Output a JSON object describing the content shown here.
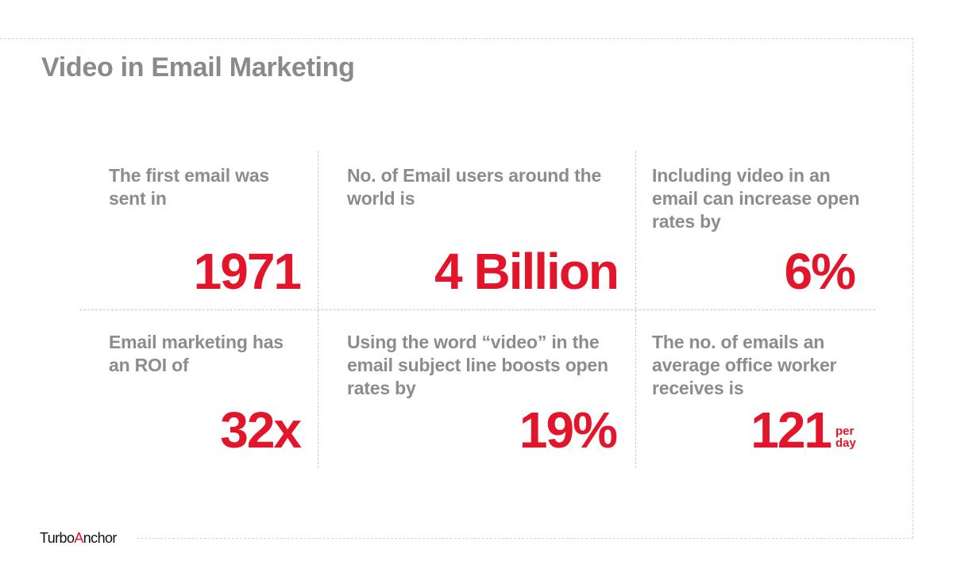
{
  "title": "Video in Email Marketing",
  "stats": [
    {
      "label": "The first email was sent in",
      "value": "1971"
    },
    {
      "label": "No. of Email users around the world is",
      "value": "4 Billion"
    },
    {
      "label": "Including video in an email can increase open rates by",
      "value": "6%"
    },
    {
      "label": "Email marketing has an ROI of",
      "value": "32x"
    },
    {
      "label": "Using the word “video” in the email subject line boosts open rates by",
      "value": "19%"
    },
    {
      "label": "The no. of emails an average office worker receives is",
      "value": "121",
      "unit_top": "per",
      "unit_bottom": "day"
    }
  ],
  "logo": {
    "part1": "Turbo",
    "accent_letter": "A",
    "part2": "nchor"
  },
  "colors": {
    "accent": "#e3152a",
    "text_gray": "#8c8c8c",
    "frame": "#f3c6cf",
    "grid": "#c9c9c9"
  }
}
